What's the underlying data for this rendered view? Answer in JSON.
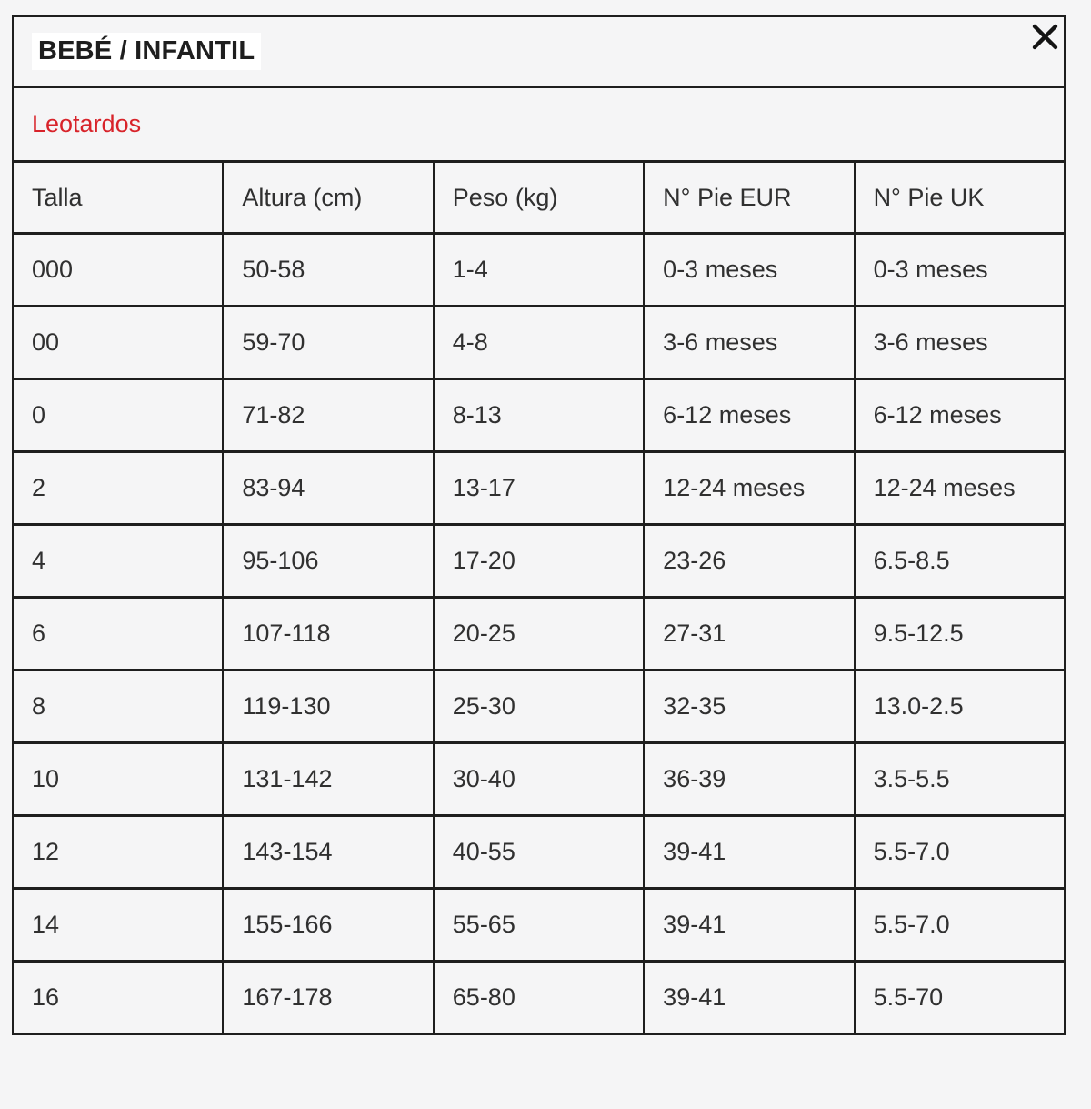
{
  "modal": {
    "title": "BEBÉ / INFANTIL",
    "category": "Leotardos",
    "close_icon": "x-close"
  },
  "table": {
    "columns": [
      "Talla",
      "Altura (cm)",
      "Peso (kg)",
      "N° Pie EUR",
      "N° Pie UK"
    ],
    "rows": [
      [
        "000",
        "50-58",
        "1-4",
        "0-3 meses",
        "0-3 meses"
      ],
      [
        "00",
        "59-70",
        "4-8",
        "3-6 meses",
        "3-6 meses"
      ],
      [
        "0",
        "71-82",
        "8-13",
        "6-12 meses",
        "6-12 meses"
      ],
      [
        "2",
        "83-94",
        "13-17",
        "12-24 meses",
        "12-24 meses"
      ],
      [
        "4",
        "95-106",
        "17-20",
        "23-26",
        "6.5-8.5"
      ],
      [
        "6",
        "107-118",
        "20-25",
        "27-31",
        "9.5-12.5"
      ],
      [
        "8",
        "119-130",
        "25-30",
        "32-35",
        "13.0-2.5"
      ],
      [
        "10",
        "131-142",
        "30-40",
        "36-39",
        "3.5-5.5"
      ],
      [
        "12",
        "143-154",
        "40-55",
        "39-41",
        "5.5-7.0"
      ],
      [
        "14",
        "155-166",
        "55-65",
        "39-41",
        "5.5-7.0"
      ],
      [
        "16",
        "167-178",
        "65-80",
        "39-41",
        "5.5-70"
      ]
    ]
  },
  "colors": {
    "background": "#f5f5f6",
    "border": "#1e1e1e",
    "text": "#303030",
    "accent_red": "#d8232a",
    "title_highlight": "#ffffff"
  }
}
